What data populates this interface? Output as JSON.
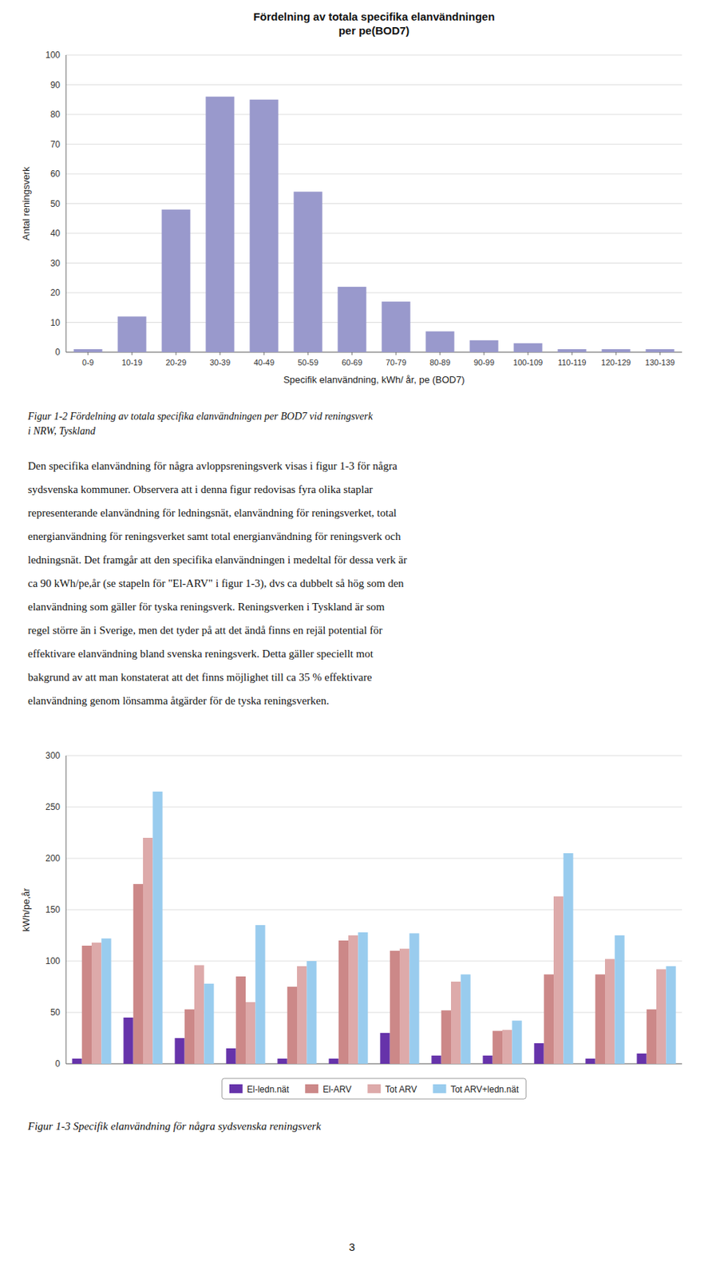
{
  "chart_data": [
    {
      "type": "bar",
      "title": "Fördelning av totala specifika elanvändningen\nper pe(BOD7)",
      "x_label": "Specifik elanvändning, kWh/ år, pe (BOD7)",
      "y_label": "Antal reningsverk",
      "categories": [
        "0-9",
        "10-19",
        "20-29",
        "30-39",
        "40-49",
        "50-59",
        "60-69",
        "70-79",
        "80-89",
        "90-99",
        "100-109",
        "110-119",
        "120-129",
        "130-139"
      ],
      "values": [
        1,
        12,
        48,
        86,
        85,
        54,
        22,
        17,
        7,
        4,
        3,
        1,
        1,
        1
      ],
      "color": "#9999cc",
      "ylim": [
        0,
        100
      ],
      "yticks": [
        0,
        10,
        20,
        30,
        40,
        50,
        60,
        70,
        80,
        90,
        100
      ],
      "grid": true,
      "caption": [
        "Figur 1-2 Fördelning av totala specifika elanvändningen per BOD7 vid reningsverk",
        "i NRW, Tyskland"
      ]
    },
    {
      "type": "bar",
      "y_label": "kWh/pe,år",
      "categories": [
        null,
        null,
        null,
        null,
        null,
        null,
        null,
        null,
        null,
        null,
        null,
        null
      ],
      "series": [
        {
          "name": "El-ledn.nät",
          "color": "#6633aa",
          "values": [
            5,
            45,
            25,
            15,
            5,
            5,
            30,
            8,
            8,
            20,
            5,
            10
          ]
        },
        {
          "name": "El-ARV",
          "color": "#cc8888",
          "values": [
            115,
            175,
            53,
            85,
            75,
            120,
            110,
            52,
            32,
            87,
            87,
            53
          ]
        },
        {
          "name": "Tot ARV",
          "color": "#ddaaaa",
          "values": [
            118,
            220,
            96,
            60,
            95,
            125,
            112,
            80,
            33,
            163,
            102,
            92
          ]
        },
        {
          "name": "Tot ARV+ledn.nät",
          "color": "#99ccee",
          "values": [
            122,
            265,
            78,
            135,
            100,
            128,
            127,
            87,
            42,
            205,
            125,
            95
          ]
        }
      ],
      "ylim": [
        0,
        300
      ],
      "yticks": [
        0,
        50,
        100,
        150,
        200,
        250,
        300
      ],
      "grid": true,
      "legend": "bottom",
      "tick_labels": "y",
      "caption": [
        "Figur 1-3 Specifik elanvändning för några sydsvenska reningsverk"
      ]
    }
  ],
  "text": {
    "paragraph": [
      "Den specifika elanvändning för några avloppsreningsverk visas i figur 1-3 för några",
      "sydsvenska kommuner. Observera att i denna figur redovisas fyra olika staplar",
      "representerande elanvändning för ledningsnät, elanvändning för reningsverket, total",
      "energianvändning för reningsverket samt total energianvändning för reningsverk och",
      "ledningsnät. Det framgår att den specifika elanvändningen i medeltal för dessa verk är",
      "ca 90 kWh/pe,år (se stapeln för \"El-ARV\" i figur 1-3), dvs ca dubbelt så hög som den",
      "elanvändning som gäller för tyska reningsverk. Reningsverken i Tyskland är som",
      "regel större än i Sverige, men det tyder på att det ändå finns en rejäl potential för",
      "effektivare elanvändning bland svenska reningsverk. Detta gäller speciellt mot",
      "bakgrund av att man konstaterat att det finns möjlighet till ca 35 % effektivare",
      "elanvändning genom lönsamma åtgärder för de tyska reningsverken."
    ],
    "page_number": "3"
  }
}
